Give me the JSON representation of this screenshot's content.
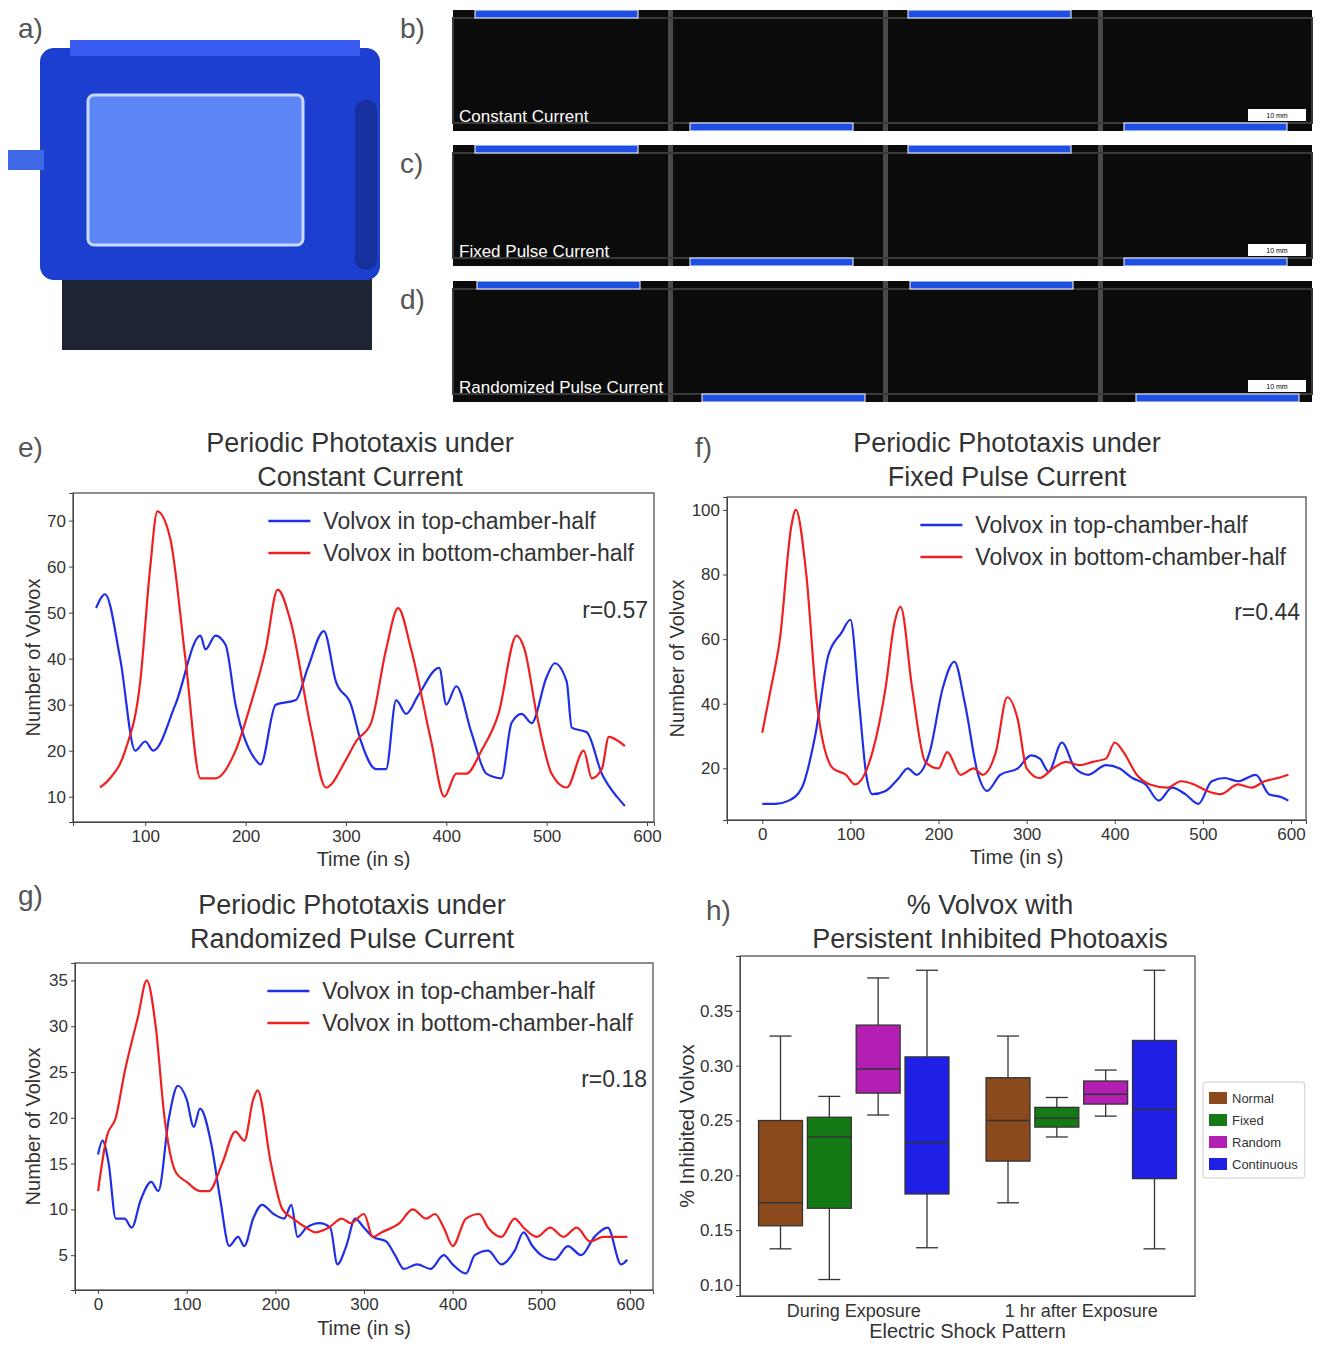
{
  "images": [
    {
      "panel": "a)"
    },
    {
      "panel": "b)",
      "caption": "Constant Current",
      "scale_bar": "10 mm"
    },
    {
      "panel": "c)",
      "caption": "Fixed Pulse Current",
      "scale_bar": "10 mm"
    },
    {
      "panel": "d)",
      "caption": "Randomized Pulse Current",
      "scale_bar": "10 mm"
    }
  ],
  "chart_data": [
    {
      "type": "line",
      "panel": "e)",
      "title": "Periodic Phototaxis under Constant Current",
      "x_label": "Time (in s)",
      "y_label": "Number of Volvox",
      "annotation": "r=0.57",
      "xlim": [
        28,
        607
      ],
      "ylim": [
        4.5,
        76
      ],
      "xticks": [
        100,
        200,
        300,
        400,
        500,
        600
      ],
      "yticks": [
        10,
        20,
        30,
        40,
        50,
        60,
        70
      ],
      "grid": false,
      "legend": "upper right",
      "series": [
        {
          "name": "Volvox in top-chamber-half",
          "color": "#1f2fe8",
          "x": [
            51,
            60,
            75,
            90,
            100,
            108,
            130,
            155,
            160,
            170,
            180,
            190,
            210,
            215,
            230,
            250,
            262,
            278,
            290,
            305,
            315,
            330,
            340,
            350,
            360,
            372,
            393,
            400,
            410,
            425,
            440,
            455,
            465,
            475,
            485,
            500,
            508,
            520,
            525,
            540,
            555,
            570,
            578
          ],
          "values": [
            51,
            54,
            40,
            20,
            22,
            20,
            30,
            45,
            42,
            45,
            43,
            30,
            18,
            17,
            30,
            31,
            38,
            46,
            35,
            30,
            22,
            16,
            16,
            31,
            28,
            32,
            38,
            30,
            34,
            24,
            15,
            14,
            26,
            28,
            26,
            36,
            39,
            35,
            25,
            24,
            15,
            10,
            8
          ]
        },
        {
          "name": "Volvox in bottom-chamber-half",
          "color": "#f02020",
          "x": [
            55,
            65,
            80,
            95,
            105,
            112,
            125,
            140,
            155,
            170,
            190,
            205,
            220,
            232,
            245,
            265,
            280,
            300,
            310,
            325,
            340,
            352,
            365,
            385,
            398,
            410,
            420,
            435,
            452,
            470,
            478,
            490,
            505,
            520,
            537,
            545,
            555,
            562,
            572,
            578
          ],
          "values": [
            12,
            14,
            20,
            35,
            60,
            72,
            66,
            40,
            14,
            14,
            20,
            30,
            42,
            55,
            48,
            25,
            12,
            18,
            22,
            26,
            42,
            51,
            42,
            22,
            10,
            15,
            15,
            20,
            28,
            45,
            42,
            28,
            15,
            12,
            20,
            14,
            16,
            23,
            22,
            21
          ]
        }
      ]
    },
    {
      "type": "line",
      "panel": "f)",
      "title": "Periodic Phototaxis under Fixed Pulse Current",
      "x_label": "Time (in s)",
      "y_label": "Number of Volvox",
      "annotation": "r=0.44",
      "xlim": [
        -40,
        617
      ],
      "ylim": [
        4,
        104
      ],
      "xticks": [
        0,
        100,
        200,
        300,
        400,
        500,
        600
      ],
      "yticks": [
        20,
        40,
        60,
        80,
        100
      ],
      "grid": false,
      "legend": "upper right",
      "series": [
        {
          "name": "Volvox in top-chamber-half",
          "color": "#1f2fe8",
          "x": [
            0,
            15,
            30,
            45,
            60,
            75,
            90,
            100,
            110,
            118,
            125,
            140,
            155,
            165,
            175,
            190,
            205,
            218,
            230,
            245,
            255,
            270,
            290,
            305,
            315,
            325,
            340,
            355,
            370,
            390,
            405,
            420,
            435,
            450,
            465,
            480,
            495,
            510,
            525,
            540,
            560,
            575,
            590,
            597
          ],
          "values": [
            9,
            9,
            10,
            14,
            30,
            55,
            62,
            66,
            40,
            18,
            12,
            13,
            17,
            20,
            18,
            25,
            45,
            53,
            40,
            18,
            13,
            18,
            20,
            24,
            23,
            19,
            28,
            20,
            18,
            21,
            20,
            17,
            15,
            10,
            14,
            12,
            9,
            16,
            17,
            16,
            18,
            12,
            11,
            10
          ]
        },
        {
          "name": "Volvox in bottom-chamber-half",
          "color": "#f02020",
          "x": [
            0,
            10,
            20,
            33,
            38,
            50,
            62,
            80,
            95,
            105,
            125,
            140,
            150,
            157,
            170,
            185,
            200,
            210,
            225,
            240,
            250,
            265,
            278,
            290,
            300,
            315,
            330,
            345,
            360,
            375,
            390,
            400,
            410,
            425,
            440,
            460,
            475,
            490,
            505,
            520,
            540,
            555,
            570,
            585,
            597
          ],
          "values": [
            31,
            45,
            60,
            95,
            100,
            80,
            40,
            20,
            18,
            15,
            25,
            45,
            65,
            70,
            45,
            22,
            20,
            25,
            18,
            20,
            18,
            25,
            42,
            35,
            20,
            17,
            20,
            22,
            21,
            22,
            23,
            28,
            25,
            18,
            15,
            14,
            16,
            15,
            13,
            12,
            15,
            14,
            16,
            17,
            18
          ]
        }
      ]
    },
    {
      "type": "line",
      "panel": "g)",
      "title": "Periodic Phototaxis under Randomized Pulse Current",
      "x_label": "Time (in s)",
      "y_label": "Number of Volvox",
      "annotation": "r=0.18",
      "xlim": [
        -26,
        626
      ],
      "ylim": [
        1.2,
        36.9
      ],
      "xticks": [
        0,
        100,
        200,
        300,
        400,
        500,
        600
      ],
      "yticks": [
        5,
        10,
        15,
        20,
        25,
        30,
        35
      ],
      "grid": false,
      "legend": "upper right",
      "series": [
        {
          "name": "Volvox in top-chamber-half",
          "color": "#1f2fe8",
          "x": [
            0,
            5,
            12,
            20,
            30,
            38,
            48,
            60,
            68,
            80,
            90,
            100,
            108,
            115,
            128,
            138,
            148,
            158,
            165,
            175,
            185,
            198,
            210,
            218,
            225,
            235,
            250,
            262,
            270,
            280,
            290,
            300,
            310,
            325,
            335,
            345,
            360,
            375,
            390,
            400,
            415,
            425,
            440,
            455,
            470,
            480,
            490,
            500,
            515,
            530,
            545,
            560,
            575,
            590,
            597
          ],
          "values": [
            16,
            17.5,
            15,
            9,
            9,
            8,
            11,
            13,
            12,
            20,
            23.5,
            22,
            19,
            21,
            17,
            11,
            6,
            7,
            6,
            9,
            10.5,
            9.5,
            9,
            10.5,
            7,
            8,
            8.5,
            8,
            4,
            6,
            9,
            8,
            7,
            6.5,
            5,
            3.5,
            4,
            3.5,
            5,
            4,
            3,
            5,
            5.5,
            4,
            5.5,
            7.5,
            6,
            5,
            4.5,
            6,
            5,
            7,
            8,
            4,
            4.5
          ]
        },
        {
          "name": "Volvox in bottom-chamber-half",
          "color": "#f02020",
          "x": [
            0,
            10,
            20,
            30,
            45,
            55,
            65,
            75,
            88,
            100,
            115,
            125,
            140,
            155,
            165,
            175,
            180,
            195,
            208,
            220,
            235,
            245,
            260,
            275,
            285,
            300,
            310,
            320,
            340,
            355,
            370,
            380,
            390,
            400,
            415,
            430,
            440,
            455,
            470,
            480,
            495,
            510,
            525,
            540,
            555,
            570,
            597
          ],
          "values": [
            12,
            18,
            20,
            25,
            31,
            35,
            30,
            20,
            14,
            13,
            12,
            12,
            15,
            18.5,
            17.5,
            22,
            23,
            15,
            10,
            9,
            8,
            7.5,
            8,
            9,
            8.5,
            9.5,
            7,
            7.5,
            8.5,
            10,
            9,
            9.5,
            8,
            6,
            9,
            9.5,
            8,
            7,
            9,
            8,
            7,
            8,
            7,
            8,
            6.5,
            7,
            7
          ]
        }
      ]
    },
    {
      "type": "box",
      "panel": "h)",
      "title": "% Volvox with Persistent Inhibited Photoaxis",
      "x_label": "Electric Shock Pattern",
      "y_label": "% Inhibited Volvox",
      "categories": [
        "During Exposure",
        "1 hr after Exposure"
      ],
      "ylim": [
        0.09,
        0.4
      ],
      "yticks": [
        {
          "value": 0.1,
          "label": "0.10"
        },
        0.15,
        {
          "value": 0.2,
          "label": "0.20"
        },
        0.25,
        {
          "value": 0.3,
          "label": "0.30"
        },
        0.35
      ],
      "grid": false,
      "legend": "right",
      "series": [
        {
          "name": "Normal",
          "color": "#8b4a1c",
          "min": [
            0.133,
            0.175
          ],
          "q1": [
            0.154,
            0.213
          ],
          "median": [
            0.175,
            0.25
          ],
          "q3": [
            0.25,
            0.289
          ],
          "max": [
            0.327,
            0.327
          ]
        },
        {
          "name": "Fixed",
          "color": "#157a15",
          "min": [
            0.105,
            0.235
          ],
          "q1": [
            0.17,
            0.244
          ],
          "median": [
            0.235,
            0.252
          ],
          "q3": [
            0.253,
            0.262
          ],
          "max": [
            0.272,
            0.271
          ]
        },
        {
          "name": "Random",
          "color": "#b31fb3",
          "min": [
            0.255,
            0.254
          ],
          "q1": [
            0.275,
            0.265
          ],
          "median": [
            0.297,
            0.274
          ],
          "q3": [
            0.337,
            0.286
          ],
          "max": [
            0.38,
            0.296
          ]
        },
        {
          "name": "Continuous",
          "color": "#1f1fe6",
          "min": [
            0.134,
            0.133
          ],
          "q1": [
            0.183,
            0.197
          ],
          "median": [
            0.23,
            0.26
          ],
          "q3": [
            0.308,
            0.323
          ],
          "max": [
            0.387,
            0.387
          ]
        }
      ]
    }
  ]
}
